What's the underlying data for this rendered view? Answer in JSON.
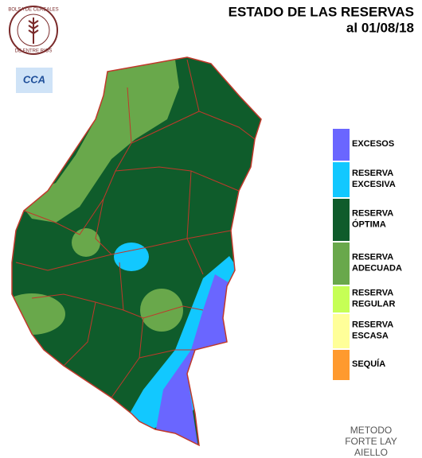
{
  "header": {
    "title": "ESTADO DE LAS RESERVAS",
    "date": "al 01/08/18"
  },
  "logos": {
    "bolsa": [
      "BOLSA DE CEREALES",
      "DE ENTRE RIOS"
    ],
    "cca": "CCA"
  },
  "legend": [
    {
      "lines": [
        "EXCESOS"
      ],
      "color": "#6a66ff"
    },
    {
      "lines": [
        "RESERVA",
        "EXCESIVA"
      ],
      "color": "#12c8ff"
    },
    {
      "lines": [
        "RESERVA",
        "ÓPTIMA"
      ],
      "color": "#0f5c2b"
    },
    {
      "lines": [
        "RESERVA",
        "ADECUADA"
      ],
      "color": "#69a84b"
    },
    {
      "lines": [
        "RESERVA",
        "REGULAR"
      ],
      "color": "#c6ff55"
    },
    {
      "lines": [
        "RESERVA",
        "ESCASA"
      ],
      "color": "#ffff99"
    },
    {
      "lines": [
        "SEQUÍA"
      ],
      "color": "#ff9a2e"
    }
  ],
  "footer": {
    "method": [
      "METODO",
      "FORTE LAY",
      "AIELLO"
    ]
  }
}
